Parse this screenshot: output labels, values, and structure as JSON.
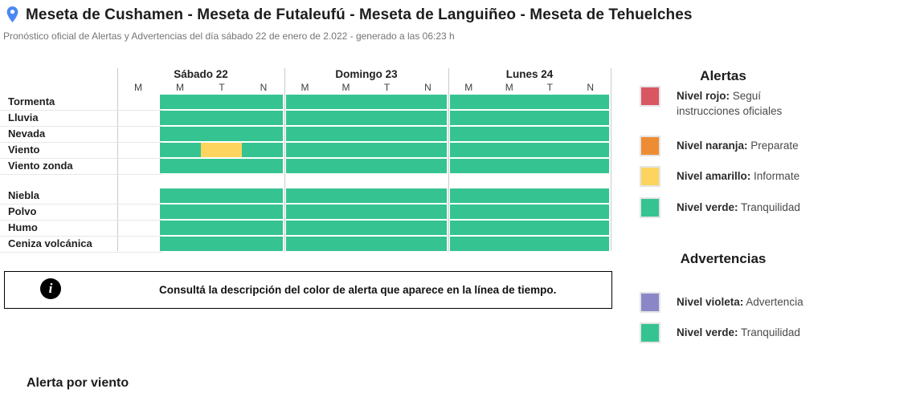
{
  "header": {
    "title": "Meseta de Cushamen - Meseta de Futaleufú - Meseta de Languiñeo - Meseta de Tehuelches",
    "subtitle": "Pronóstico oficial de Alertas y Advertencias del día sábado 22 de enero de 2.022 - generado a las 06:23 h"
  },
  "colors": {
    "green": "#35c491",
    "yellow": "#fcd45e",
    "red": "#d85763",
    "orange": "#ee8c34",
    "violet": "#8b87c7",
    "pin_blue": "#4a89f3"
  },
  "timeline": {
    "days": [
      {
        "label": "Sábado 22",
        "periods": [
          "M",
          "M",
          "T",
          "N"
        ]
      },
      {
        "label": "Domingo 23",
        "periods": [
          "M",
          "M",
          "T",
          "N"
        ]
      },
      {
        "label": "Lunes 24",
        "periods": [
          "M",
          "M",
          "T",
          "N"
        ]
      }
    ],
    "groups": [
      {
        "rows": [
          {
            "label": "Tormenta",
            "cells": [
              [
                "",
                "g",
                "g",
                "g"
              ],
              [
                "g",
                "g",
                "g",
                "g"
              ],
              [
                "g",
                "g",
                "g",
                "g"
              ]
            ]
          },
          {
            "label": "Lluvia",
            "cells": [
              [
                "",
                "g",
                "g",
                "g"
              ],
              [
                "g",
                "g",
                "g",
                "g"
              ],
              [
                "g",
                "g",
                "g",
                "g"
              ]
            ]
          },
          {
            "label": "Nevada",
            "cells": [
              [
                "",
                "g",
                "g",
                "g"
              ],
              [
                "g",
                "g",
                "g",
                "g"
              ],
              [
                "g",
                "g",
                "g",
                "g"
              ]
            ]
          },
          {
            "label": "Viento",
            "cells": [
              [
                "",
                "g",
                "y",
                "g"
              ],
              [
                "g",
                "g",
                "g",
                "g"
              ],
              [
                "g",
                "g",
                "g",
                "g"
              ]
            ]
          },
          {
            "label": "Viento zonda",
            "cells": [
              [
                "",
                "g",
                "g",
                "g"
              ],
              [
                "g",
                "g",
                "g",
                "g"
              ],
              [
                "g",
                "g",
                "g",
                "g"
              ]
            ]
          }
        ]
      },
      {
        "rows": [
          {
            "label": "Niebla",
            "cells": [
              [
                "",
                "g",
                "g",
                "g"
              ],
              [
                "g",
                "g",
                "g",
                "g"
              ],
              [
                "g",
                "g",
                "g",
                "g"
              ]
            ]
          },
          {
            "label": "Polvo",
            "cells": [
              [
                "",
                "g",
                "g",
                "g"
              ],
              [
                "g",
                "g",
                "g",
                "g"
              ],
              [
                "g",
                "g",
                "g",
                "g"
              ]
            ]
          },
          {
            "label": "Humo",
            "cells": [
              [
                "",
                "g",
                "g",
                "g"
              ],
              [
                "g",
                "g",
                "g",
                "g"
              ],
              [
                "g",
                "g",
                "g",
                "g"
              ]
            ]
          },
          {
            "label": "Ceniza volcánica",
            "cells": [
              [
                "",
                "g",
                "g",
                "g"
              ],
              [
                "g",
                "g",
                "g",
                "g"
              ],
              [
                "g",
                "g",
                "g",
                "g"
              ]
            ]
          }
        ]
      }
    ]
  },
  "info_box": {
    "icon_glyph": "i",
    "text": "Consultá la descripción del color de alerta que aparece en la línea de tiempo."
  },
  "legend": {
    "alertas": {
      "heading": "Alertas",
      "items": [
        {
          "color_key": "red",
          "level": "Nivel rojo:",
          "desc": " Seguí instrucciones oficiales"
        },
        {
          "color_key": "orange",
          "level": "Nivel naranja:",
          "desc": " Preparate"
        },
        {
          "color_key": "yellow",
          "level": "Nivel amarillo:",
          "desc": " Informate"
        },
        {
          "color_key": "green",
          "level": "Nivel verde:",
          "desc": " Tranquilidad"
        }
      ]
    },
    "advertencias": {
      "heading": "Advertencias",
      "items": [
        {
          "color_key": "violet",
          "level": "Nivel violeta:",
          "desc": " Advertencia"
        },
        {
          "color_key": "green",
          "level": "Nivel verde:",
          "desc": " Tranquilidad"
        }
      ]
    }
  },
  "footer": {
    "section_title": "Alerta por viento"
  }
}
